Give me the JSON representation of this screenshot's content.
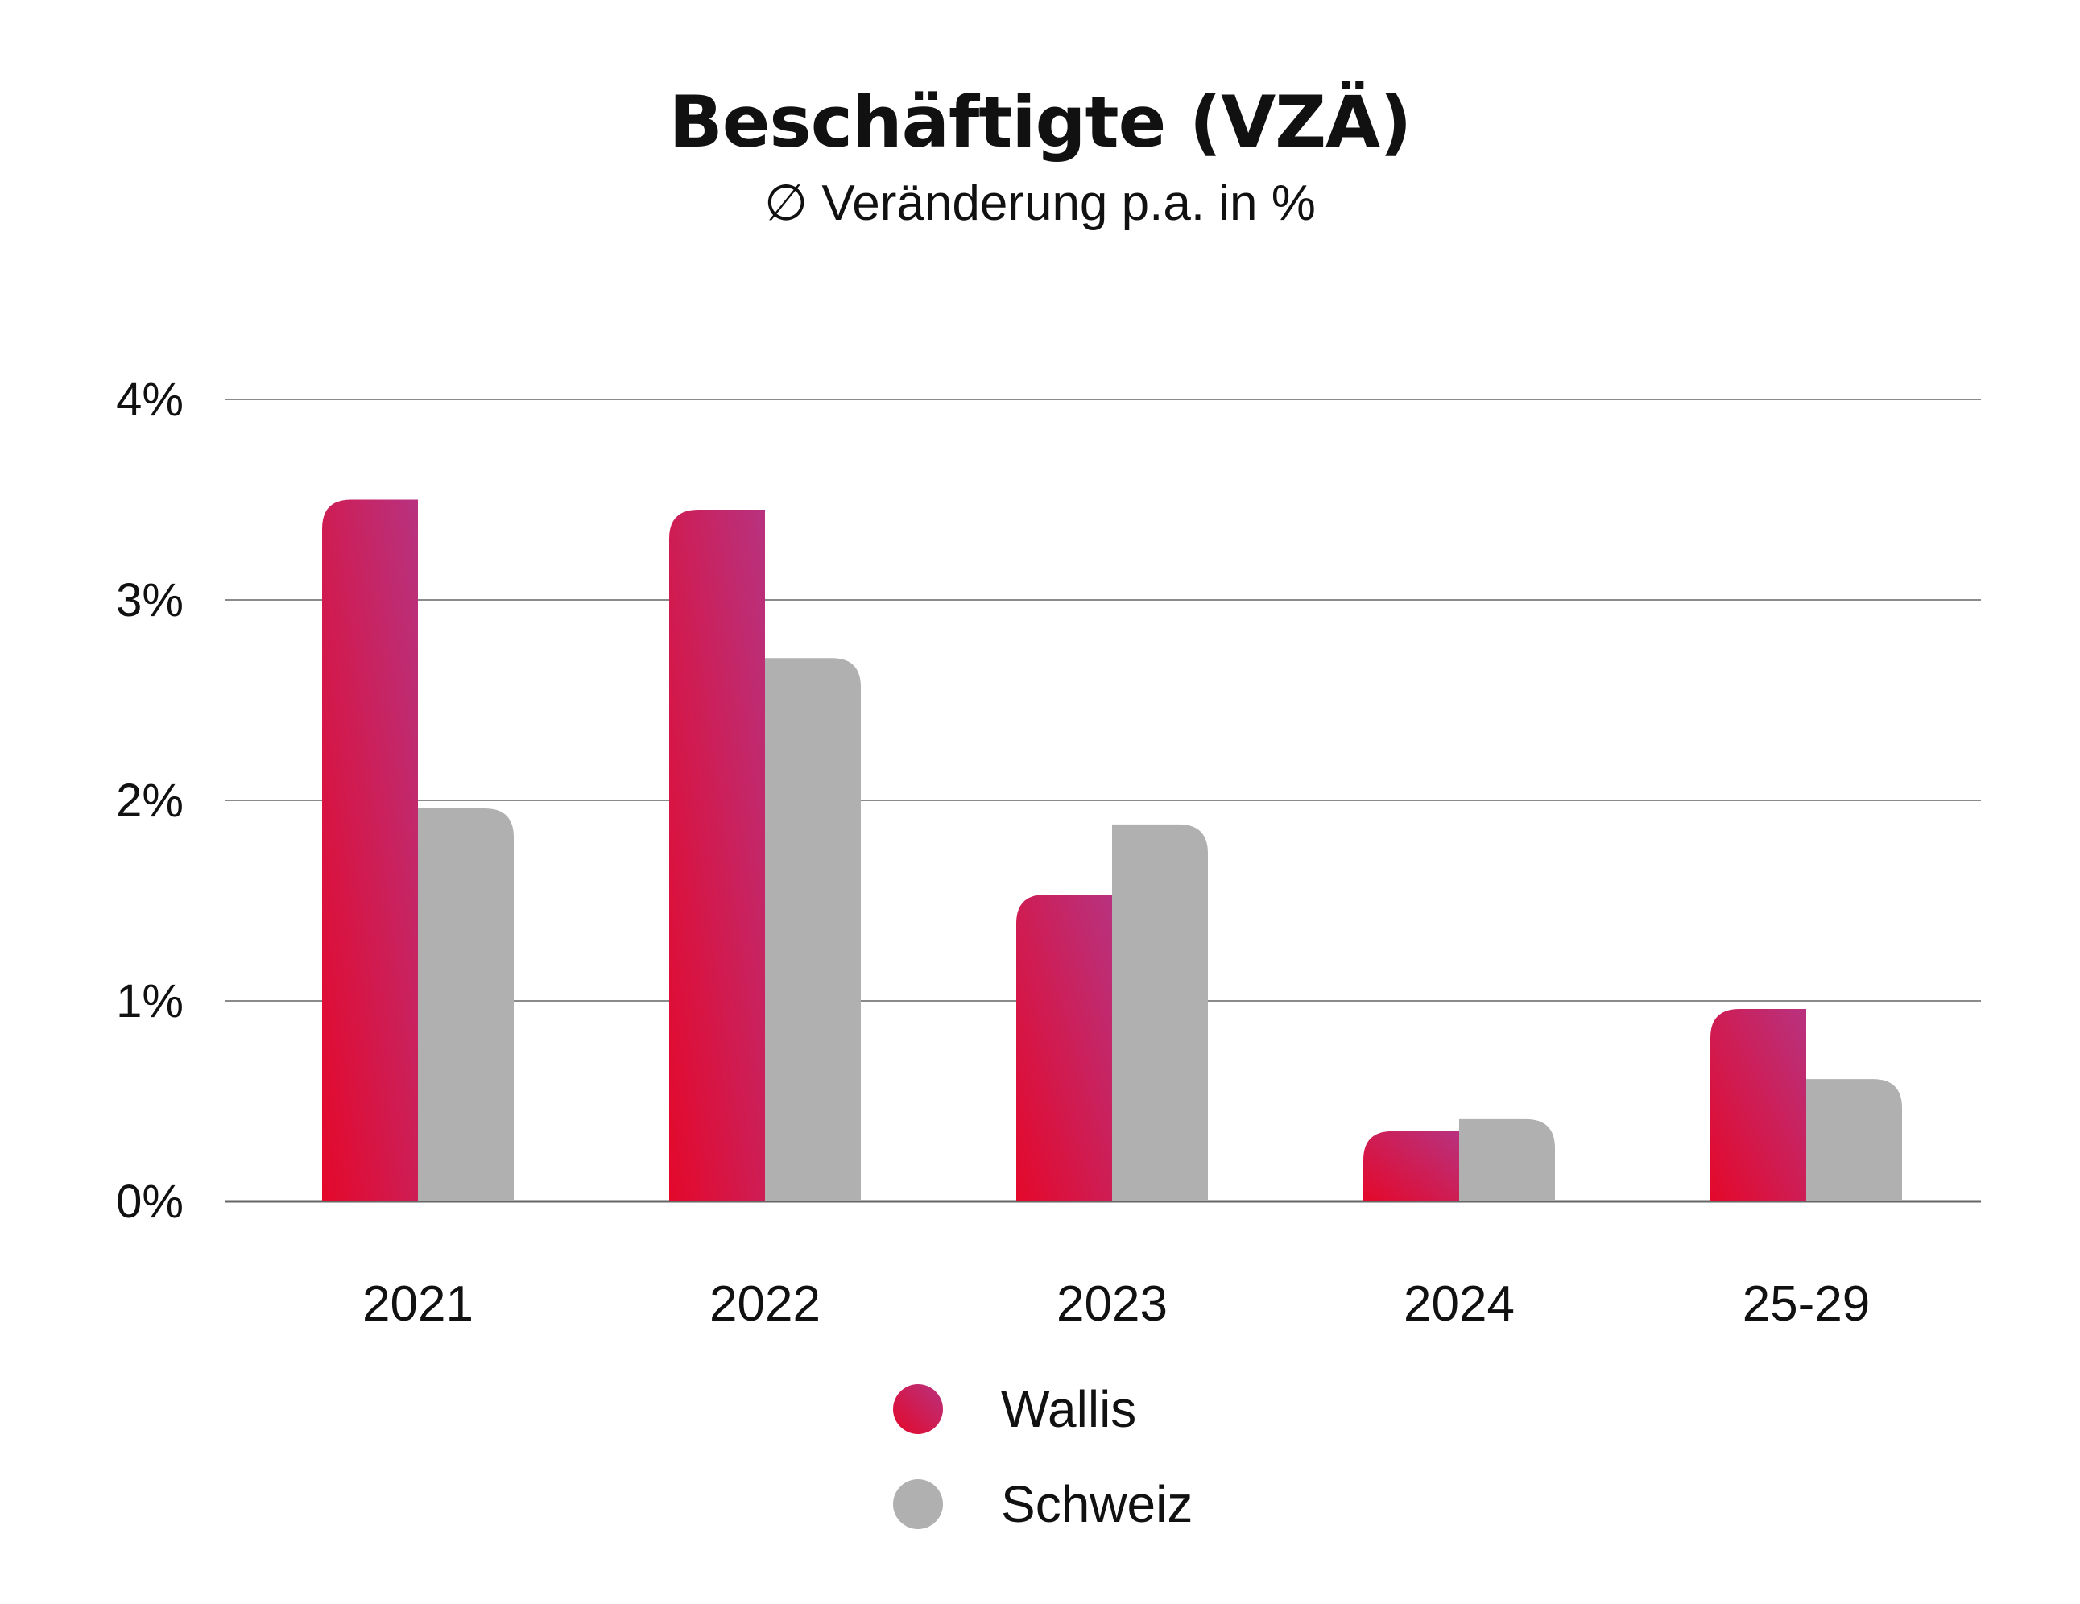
{
  "chart_data": {
    "type": "bar",
    "title": "Beschäftigte (VZÄ)",
    "subtitle": "∅ Veränderung p.a. in %",
    "categories": [
      "2021",
      "2022",
      "2023",
      "2024",
      "25-29"
    ],
    "series": [
      {
        "name": "Wallis",
        "values": [
          3.5,
          3.45,
          1.53,
          0.35,
          0.96
        ],
        "color": "#e4082a",
        "color_top": "#b8327f"
      },
      {
        "name": "Schweiz",
        "values": [
          1.96,
          2.71,
          1.88,
          0.41,
          0.61
        ],
        "color": "#b0b0b0"
      }
    ],
    "ylim": [
      0,
      4
    ],
    "yticks": [
      0,
      1,
      2,
      3,
      4
    ],
    "ytick_labels": [
      "0%",
      "1%",
      "2%",
      "3%",
      "4%"
    ],
    "grid": true,
    "legend": "bottom-center",
    "xlabel": "",
    "ylabel": ""
  }
}
